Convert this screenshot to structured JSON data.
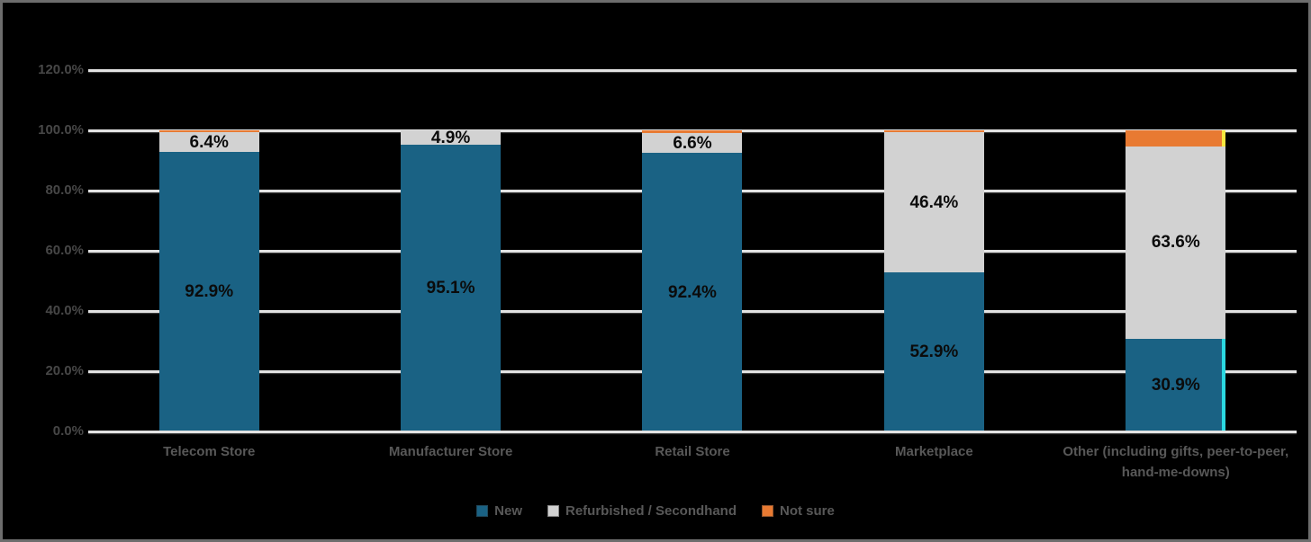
{
  "frame": {
    "background_color": "#000000",
    "border_color": "#6d6d6d"
  },
  "chart_data": {
    "type": "bar",
    "stacked": true,
    "categories": [
      "Telecom Store",
      "Manufacturer Store",
      "Retail Store",
      "Marketplace",
      "Other (including gifts, peer-to-peer, hand-me-downs)"
    ],
    "series": [
      {
        "name": "New",
        "color": "#1a6284",
        "values": [
          92.9,
          95.1,
          92.4,
          52.9,
          30.9
        ],
        "labels": [
          "92.9%",
          "95.1%",
          "92.4%",
          "52.9%",
          "30.9%"
        ]
      },
      {
        "name": "Refurbished / Secondhand",
        "color": "#d2d2d2",
        "values": [
          6.4,
          4.9,
          6.6,
          46.4,
          63.6
        ],
        "labels": [
          "6.4%",
          "4.9%",
          "6.6%",
          "46.4%",
          "63.6%"
        ]
      },
      {
        "name": "Not sure",
        "color": "#e87a32",
        "values": [
          0.7,
          0.0,
          1.0,
          0.7,
          5.5
        ],
        "labels": [
          "",
          "",
          "",
          "",
          ""
        ]
      }
    ],
    "y_axis": {
      "min": 0,
      "max": 120,
      "step": 20,
      "tick_labels": [
        "0.0%",
        "20.0%",
        "40.0%",
        "60.0%",
        "80.0%",
        "100.0%",
        "120.0%"
      ]
    },
    "grid": true,
    "gridline_color": "#e3e3e3",
    "legend_position": "bottom",
    "axis_label_color": "#474747",
    "category_label_color": "#585858",
    "data_label_color": "#0b0b0b",
    "highlights": [
      {
        "category_index": 4,
        "series_index": 0,
        "edge_color": "#2bd9e2"
      },
      {
        "category_index": 4,
        "series_index": 2,
        "edge_color": "#f6e73f"
      }
    ]
  }
}
